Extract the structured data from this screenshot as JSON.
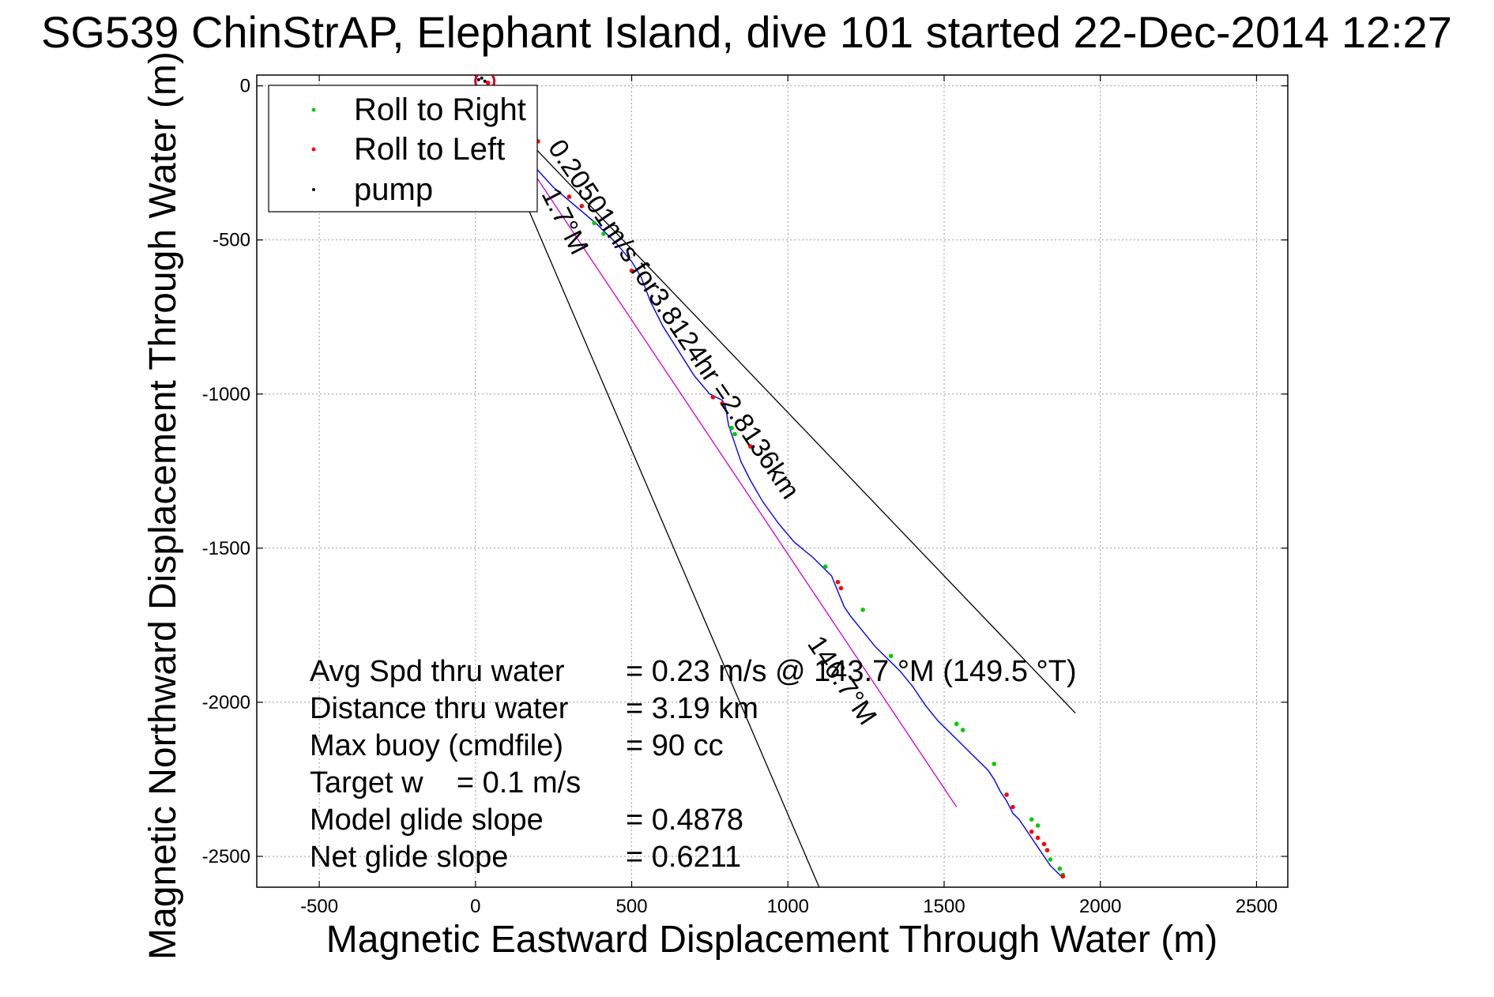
{
  "chart_data": {
    "type": "scatter",
    "title": "SG539 ChinStrAP, Elephant Island, dive 101 started 22-Dec-2014 12:27",
    "xlabel": "Magnetic Eastward Displacement Through Water (m)",
    "ylabel": "Magnetic Northward Displacement Through Water (m)",
    "xlim": [
      -700,
      2600
    ],
    "ylim": [
      -2600,
      35
    ],
    "grid": true,
    "legend_position": "top-left",
    "x_ticks": [
      -500,
      0,
      500,
      1000,
      1500,
      2000,
      2500
    ],
    "y_ticks": [
      0,
      -500,
      -1000,
      -1500,
      -2000,
      -2500
    ],
    "x_tick_labels": [
      "-500",
      "0",
      "500",
      "1000",
      "1500",
      "2000",
      "2500"
    ],
    "y_tick_labels": [
      "0",
      "-500",
      "-1000",
      "-1500",
      "-2000",
      "-2500"
    ],
    "legend": [
      {
        "name": "Roll to Right",
        "color": "#00cc00"
      },
      {
        "name": "Roll to Left",
        "color": "#ff0000"
      },
      {
        "name": "pump",
        "color": "#000000"
      }
    ],
    "track": {
      "color": "#0000ff",
      "x": [
        0,
        60,
        160,
        250,
        320,
        390,
        450,
        500,
        530,
        560,
        600,
        650,
        700,
        750,
        790,
        800,
        810,
        830,
        850,
        880,
        920,
        970,
        1020,
        1080,
        1120,
        1140,
        1160,
        1180,
        1200,
        1240,
        1280,
        1320,
        1360,
        1400,
        1440,
        1480,
        1520,
        1560,
        1600,
        1640,
        1660,
        1680,
        1700,
        1720,
        1740,
        1760,
        1780,
        1800,
        1820,
        1840,
        1860,
        1880
      ],
      "y": [
        0,
        -100,
        -230,
        -330,
        -390,
        -450,
        -510,
        -570,
        -620,
        -700,
        -780,
        -860,
        -940,
        -1000,
        -1020,
        -1040,
        -1100,
        -1160,
        -1220,
        -1280,
        -1350,
        -1420,
        -1480,
        -1530,
        -1570,
        -1590,
        -1640,
        -1690,
        -1720,
        -1770,
        -1820,
        -1860,
        -1900,
        -1950,
        -2010,
        -2060,
        -2100,
        -2140,
        -2180,
        -2220,
        -2250,
        -2290,
        -2320,
        -2360,
        -2380,
        -2410,
        -2440,
        -2470,
        -2500,
        -2530,
        -2550,
        -2570
      ]
    },
    "roll_right_points": {
      "color": "#00cc00",
      "x": [
        380,
        410,
        820,
        830,
        1120,
        1240,
        1330,
        1540,
        1560,
        1660,
        1780,
        1800,
        1840,
        1870,
        1880
      ],
      "y": [
        -445,
        -480,
        -1110,
        -1130,
        -1560,
        -1700,
        -1850,
        -2070,
        -2090,
        -2200,
        -2380,
        -2400,
        -2510,
        -2540,
        -2560
      ]
    },
    "roll_left_points": {
      "color": "#ff0000",
      "x": [
        40,
        200,
        300,
        340,
        500,
        760,
        790,
        880,
        1160,
        1170,
        1700,
        1720,
        1780,
        1800,
        1820,
        1830,
        1880
      ],
      "y": [
        10,
        -180,
        -360,
        -390,
        -600,
        -1010,
        -1030,
        -1170,
        -1610,
        -1630,
        -2300,
        -2340,
        -2420,
        -2440,
        -2460,
        -2480,
        -2565
      ]
    },
    "pump_points": {
      "color": "#000000",
      "x": [
        10,
        20,
        30
      ],
      "y": [
        20,
        25,
        15
      ]
    },
    "surface_circle": {
      "x": 30,
      "y": 15,
      "color": "#cc0033"
    },
    "reference_lines": [
      {
        "name": "heading-line-upper",
        "color": "#000000",
        "x": [
          0,
          1920
        ],
        "y": [
          0,
          -2035
        ]
      },
      {
        "name": "heading-line-lower",
        "color": "#000000",
        "x": [
          0,
          1100
        ],
        "y": [
          0,
          -2600
        ]
      },
      {
        "name": "heading-line-mean",
        "color": "#cc00cc",
        "x": [
          0,
          1540
        ],
        "y": [
          0,
          -2340
        ]
      }
    ],
    "line_annotations": [
      {
        "text": "0.20501m/s for3.8124hr =2.8136km",
        "x": 230,
        "y": -200,
        "angle": 56
      },
      {
        "text": "1.7°M",
        "x": 210,
        "y": -350,
        "angle": 63
      },
      {
        "text": "146.7°M",
        "x": 1060,
        "y": -1810,
        "angle": 56
      }
    ],
    "summary": {
      "lines": [
        {
          "label": "Avg Spd thru water",
          "value": "=  0.23 m/s @ 143.7 °M (149.5 °T)"
        },
        {
          "label": "Distance thru water",
          "value": "=  3.19 km"
        },
        {
          "label": "Max buoy (cmdfile)",
          "value": "= 90 cc"
        },
        {
          "label": "Target w    = 0.1 m/s",
          "value": ""
        },
        {
          "label": "Model glide slope",
          "value": "= 0.4878"
        },
        {
          "label": "Net glide slope",
          "value": "= 0.6211"
        }
      ]
    }
  }
}
